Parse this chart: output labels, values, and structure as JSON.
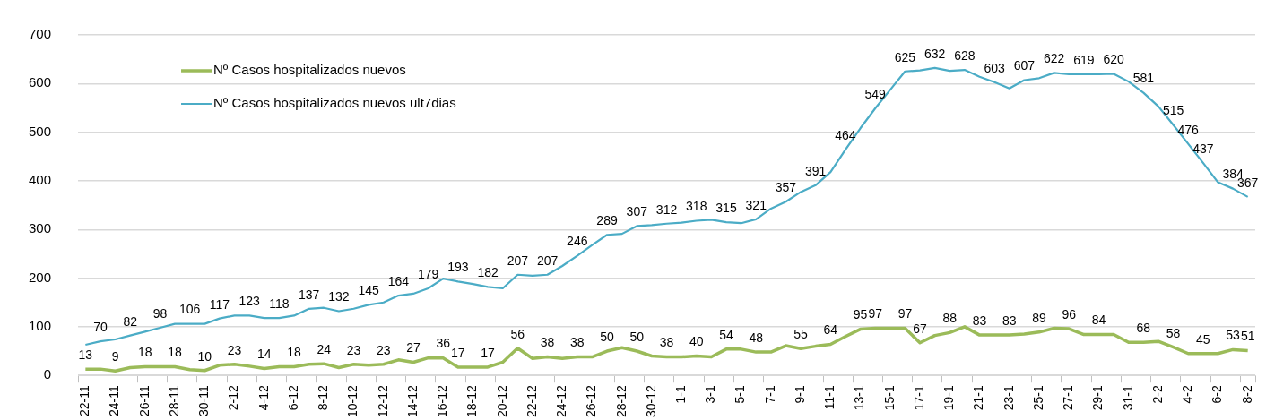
{
  "chart_data": {
    "type": "line",
    "categories": [
      "22-11",
      null,
      "24-11",
      null,
      "26-11",
      null,
      "28-11",
      null,
      "30-11",
      null,
      "2-12",
      null,
      "4-12",
      null,
      "6-12",
      null,
      "8-12",
      null,
      "10-12",
      null,
      "12-12",
      null,
      "14-12",
      null,
      "16-12",
      null,
      "18-12",
      null,
      "20-12",
      null,
      "22-12",
      null,
      "24-12",
      null,
      "26-12",
      null,
      "28-12",
      null,
      "30-12",
      null,
      "1-1",
      null,
      "3-1",
      null,
      "5-1",
      null,
      "7-1",
      null,
      "9-1",
      null,
      "11-1",
      null,
      "13-1",
      null,
      "15-1",
      null,
      "17-1",
      null,
      "19-1",
      null,
      "21-1",
      null,
      "23-1",
      null,
      "25-1",
      null,
      "27-1",
      null,
      "29-1",
      null,
      "31-1",
      null,
      "2-2",
      null,
      "4-2",
      null,
      "6-2",
      null,
      "8-2"
    ],
    "series": [
      {
        "name": "Nº Casos hospitalizados nuevos",
        "color": "#9bbb59",
        "values": [
          13,
          13,
          9,
          16,
          18,
          18,
          18,
          12,
          10,
          21,
          23,
          19,
          14,
          18,
          18,
          23,
          24,
          16,
          23,
          21,
          23,
          32,
          27,
          36,
          36,
          17,
          17,
          17,
          27,
          56,
          35,
          38,
          35,
          38,
          38,
          50,
          57,
          50,
          40,
          38,
          38,
          40,
          38,
          54,
          54,
          48,
          48,
          61,
          55,
          60,
          64,
          80,
          95,
          97,
          97,
          97,
          67,
          82,
          88,
          100,
          83,
          83,
          83,
          85,
          89,
          97,
          96,
          84,
          84,
          84,
          68,
          68,
          70,
          58,
          45,
          45,
          45,
          53,
          51
        ],
        "value_labels": [
          "13",
          null,
          "9",
          null,
          "18",
          null,
          "18",
          null,
          "10",
          null,
          "23",
          null,
          "14",
          null,
          "18",
          null,
          "24",
          null,
          "23",
          null,
          "23",
          null,
          "27",
          null,
          "36",
          "17",
          null,
          "17",
          null,
          "56",
          null,
          "38",
          null,
          "38",
          null,
          "50",
          null,
          "50",
          null,
          "38",
          null,
          "40",
          null,
          "54",
          null,
          "48",
          null,
          null,
          "55",
          null,
          "64",
          null,
          "95",
          "97",
          null,
          "97",
          "67",
          null,
          "88",
          null,
          "83",
          null,
          "83",
          null,
          "89",
          null,
          "96",
          null,
          "84",
          null,
          null,
          "68",
          null,
          "58",
          null,
          "45",
          null,
          "53",
          "51"
        ]
      },
      {
        "name": "Nº Casos hospitalizados nuevos ult7dias",
        "color": "#4bacc6",
        "values": [
          63,
          70,
          74,
          82,
          90,
          98,
          106,
          106,
          106,
          117,
          123,
          123,
          118,
          118,
          123,
          137,
          139,
          132,
          137,
          145,
          150,
          164,
          168,
          179,
          199,
          193,
          188,
          182,
          179,
          207,
          205,
          207,
          225,
          246,
          268,
          289,
          291,
          307,
          309,
          312,
          314,
          318,
          320,
          315,
          313,
          321,
          343,
          357,
          377,
          391,
          418,
          464,
          508,
          549,
          587,
          625,
          627,
          632,
          626,
          628,
          614,
          603,
          590,
          607,
          611,
          622,
          619,
          619,
          619,
          620,
          604,
          581,
          553,
          515,
          476,
          437,
          397,
          384,
          367
        ],
        "value_labels": [
          null,
          "70",
          null,
          "82",
          null,
          "98",
          null,
          "106",
          null,
          "117",
          null,
          "123",
          null,
          "118",
          null,
          "137",
          null,
          "132",
          null,
          "145",
          null,
          "164",
          null,
          "179",
          null,
          "193",
          null,
          "182",
          null,
          "207",
          null,
          "207",
          null,
          "246",
          null,
          "289",
          null,
          "307",
          null,
          "312",
          null,
          "318",
          null,
          "315",
          null,
          "321",
          null,
          "357",
          null,
          "391",
          null,
          "464",
          null,
          "549",
          null,
          "625",
          null,
          "632",
          null,
          "628",
          null,
          "603",
          null,
          "607",
          null,
          "622",
          null,
          "619",
          null,
          "620",
          null,
          "581",
          null,
          "515",
          "476",
          "437",
          null,
          "384",
          "367"
        ]
      }
    ],
    "ylim": [
      0,
      700
    ],
    "yticks": [
      0,
      100,
      200,
      300,
      400,
      500,
      600,
      700
    ],
    "grid": "y",
    "legend": "top left",
    "marker": "none"
  }
}
